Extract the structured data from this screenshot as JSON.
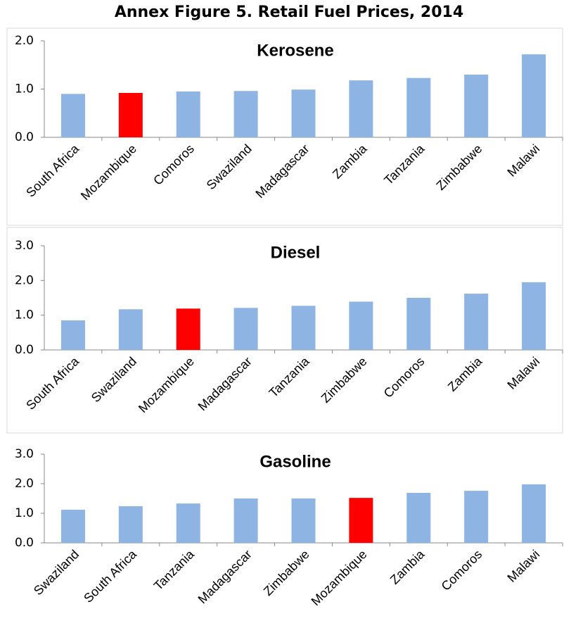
{
  "title": "Annex Figure 5. Retail Fuel Prices, 2014",
  "chart_data": [
    {
      "type": "bar",
      "title": "Kerosene",
      "categories": [
        "South Africa",
        "Mozambique",
        "Comoros",
        "Swaziland",
        "Madagascar",
        "Zambia",
        "Tanzania",
        "Zimbabwe",
        "Malawi"
      ],
      "values": [
        0.9,
        0.92,
        0.95,
        0.96,
        0.99,
        1.18,
        1.23,
        1.3,
        1.72
      ],
      "colors": [
        "#8db4e2",
        "#ff0000",
        "#8db4e2",
        "#8db4e2",
        "#8db4e2",
        "#8db4e2",
        "#8db4e2",
        "#8db4e2",
        "#8db4e2"
      ],
      "ylim": [
        0,
        2
      ],
      "yticks": [
        {
          "value": 0,
          "label": "0.0"
        },
        {
          "value": 1,
          "label": "1.0"
        },
        {
          "value": 2,
          "label": "2.0"
        }
      ]
    },
    {
      "type": "bar",
      "title": "Diesel",
      "categories": [
        "South Africa",
        "Swaziland",
        "Mozambique",
        "Madagascar",
        "Tanzania",
        "Zimbabwe",
        "Comoros",
        "Zambia",
        "Malawi"
      ],
      "values": [
        0.85,
        1.17,
        1.19,
        1.21,
        1.27,
        1.39,
        1.5,
        1.62,
        1.95
      ],
      "colors": [
        "#8db4e2",
        "#8db4e2",
        "#ff0000",
        "#8db4e2",
        "#8db4e2",
        "#8db4e2",
        "#8db4e2",
        "#8db4e2",
        "#8db4e2"
      ],
      "ylim": [
        0,
        3
      ],
      "yticks": [
        {
          "value": 0,
          "label": "0.0"
        },
        {
          "value": 1,
          "label": "1.0"
        },
        {
          "value": 2,
          "label": "2.0"
        },
        {
          "value": 3,
          "label": "3.0"
        }
      ]
    },
    {
      "type": "bar",
      "title": "Gasoline",
      "categories": [
        "Swaziland",
        "South Africa",
        "Tanzania",
        "Madagascar",
        "Zimbabwe",
        "Mozambique",
        "Zambia",
        "Comoros",
        "Malawi"
      ],
      "values": [
        1.12,
        1.24,
        1.33,
        1.5,
        1.5,
        1.52,
        1.69,
        1.76,
        1.98
      ],
      "colors": [
        "#8db4e2",
        "#8db4e2",
        "#8db4e2",
        "#8db4e2",
        "#8db4e2",
        "#ff0000",
        "#8db4e2",
        "#8db4e2",
        "#8db4e2"
      ],
      "ylim": [
        0,
        3
      ],
      "yticks": [
        {
          "value": 0,
          "label": "0.0"
        },
        {
          "value": 1,
          "label": "1.0"
        },
        {
          "value": 2,
          "label": "2.0"
        },
        {
          "value": 3,
          "label": "3.0"
        }
      ]
    }
  ]
}
